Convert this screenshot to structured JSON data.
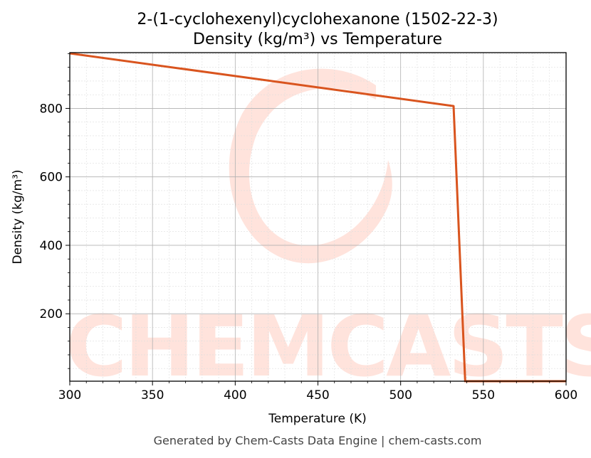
{
  "chart_data": {
    "type": "line",
    "title": "2-(1-cyclohexenyl)cyclohexanone (1502-22-3)",
    "subtitle": "Density (kg/m³) vs Temperature",
    "xlabel": "Temperature (K)",
    "ylabel": "Density (kg/m³)",
    "xlim": [
      300,
      600
    ],
    "ylim": [
      3,
      963
    ],
    "x_ticks": [
      300,
      350,
      400,
      450,
      500,
      550,
      600
    ],
    "y_ticks": [
      200,
      400,
      600,
      800
    ],
    "grid": true,
    "series": [
      {
        "color": "#d9541e",
        "x": [
          300,
          532,
          539,
          600
        ],
        "y": [
          961,
          807,
          3,
          3
        ]
      }
    ]
  },
  "watermark": {
    "text": "CHEMCASTS",
    "color": "#ffe3dc"
  },
  "footer": "Generated by Chem-Casts Data Engine | chem-casts.com"
}
